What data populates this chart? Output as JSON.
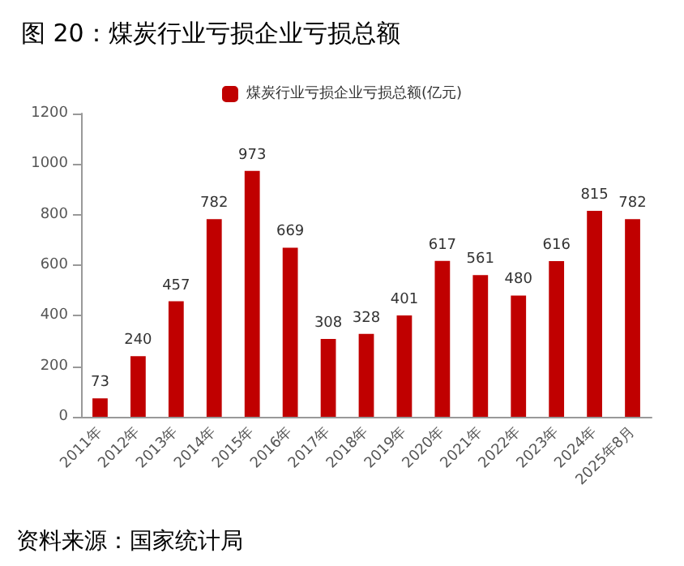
{
  "chart_data": {
    "type": "bar",
    "title": "图 20：煤炭行业亏损企业亏损总额",
    "categories": [
      "2011年",
      "2012年",
      "2013年",
      "2014年",
      "2015年",
      "2016年",
      "2017年",
      "2018年",
      "2019年",
      "2020年",
      "2021年",
      "2022年",
      "2023年",
      "2024年",
      "2025年8月"
    ],
    "series": [
      {
        "name": "煤炭行业亏损企业亏损总额(亿元)",
        "color": "#c00000",
        "values": [
          73,
          240,
          457,
          782,
          973,
          669,
          308,
          328,
          401,
          617,
          561,
          480,
          616,
          815,
          782
        ]
      }
    ],
    "ylim": [
      0,
      1200
    ],
    "yticks": [
      0,
      200,
      400,
      600,
      800,
      1000,
      1200
    ],
    "grid": false,
    "legend": "top",
    "data_labels": true,
    "annotations": [
      "资料来源：国家统计局"
    ]
  }
}
